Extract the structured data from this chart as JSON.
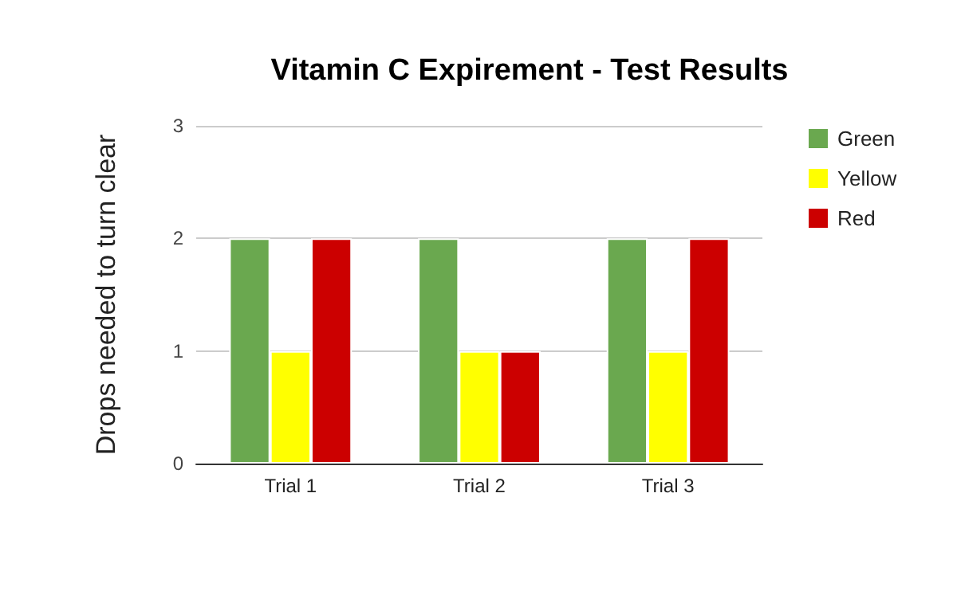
{
  "chart_data": {
    "type": "bar",
    "title": "Vitamin C Expirement - Test Results",
    "ylabel": "Drops needed to turn clear",
    "categories": [
      "Trial 1",
      "Trial 2",
      "Trial 3"
    ],
    "series": [
      {
        "name": "Green",
        "color": "#6aa84f",
        "values": [
          2,
          2,
          2
        ]
      },
      {
        "name": "Yellow",
        "color": "#ffff00",
        "values": [
          1,
          1,
          1
        ]
      },
      {
        "name": "Red",
        "color": "#cc0000",
        "values": [
          2,
          1,
          2
        ]
      }
    ],
    "ylim": [
      0,
      3
    ],
    "yticks": [
      0,
      1,
      2,
      3
    ],
    "grid": "y",
    "legend": "right"
  }
}
